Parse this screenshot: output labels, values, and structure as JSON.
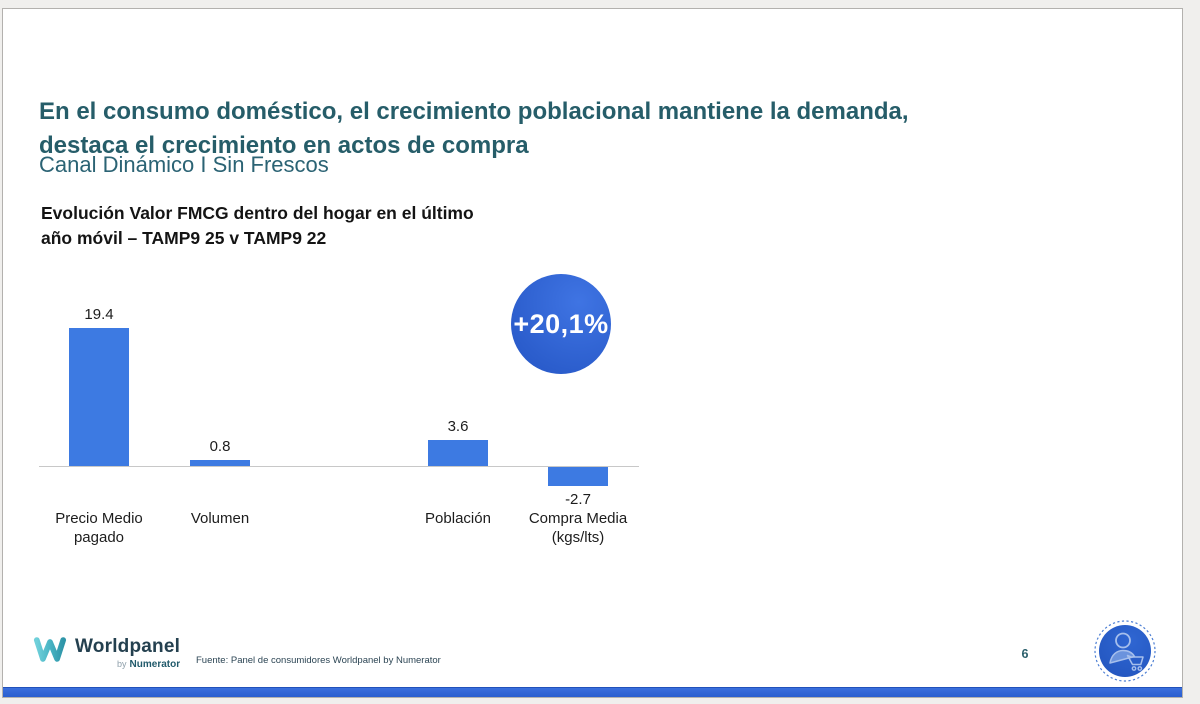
{
  "slide": {
    "title": "En el consumo doméstico, el crecimiento poblacional mantiene la demanda,\ndestaca el crecimiento en actos de compra",
    "subtitle": "Canal Dinámico I Sin Frescos",
    "page_number": "6"
  },
  "chart_data": {
    "type": "bar",
    "title": "Evolución Valor FMCG dentro del hogar en el último\naño móvil – TAMP9 25 v TAMP9 22",
    "categories": [
      "Precio Medio pagado",
      "Volumen",
      "Población",
      "Compra Media (kgs/lts)"
    ],
    "category_label_lines": [
      [
        "Precio Medio",
        "pagado"
      ],
      [
        "Volumen"
      ],
      [
        "Población"
      ],
      [
        "Compra Media",
        "(kgs/lts)"
      ]
    ],
    "values": [
      19.4,
      0.8,
      3.6,
      -2.7
    ],
    "value_labels": [
      "19.4",
      "0.8",
      "3.6",
      "-2.7"
    ],
    "annotation": "+20,1%",
    "bar_color": "#3d7ae2",
    "annotation_color": "#2c5ecd",
    "baseline_color": "#c8c8c8",
    "ylim": [
      -4,
      22
    ],
    "grid": false,
    "legend": false
  },
  "footer": {
    "logo": {
      "brand": "Worldpanel",
      "by": "by",
      "sub_brand": "Numerator"
    },
    "source": "Fuente: Panel de consumidores Worldpanel by Numerator"
  },
  "colors": {
    "title_teal": "#265d69",
    "subtitle_teal": "#2b6374",
    "bottom_bar_blue": "#2e64d3",
    "slide_background": "#ffffff",
    "page_background": "#f0efed"
  }
}
